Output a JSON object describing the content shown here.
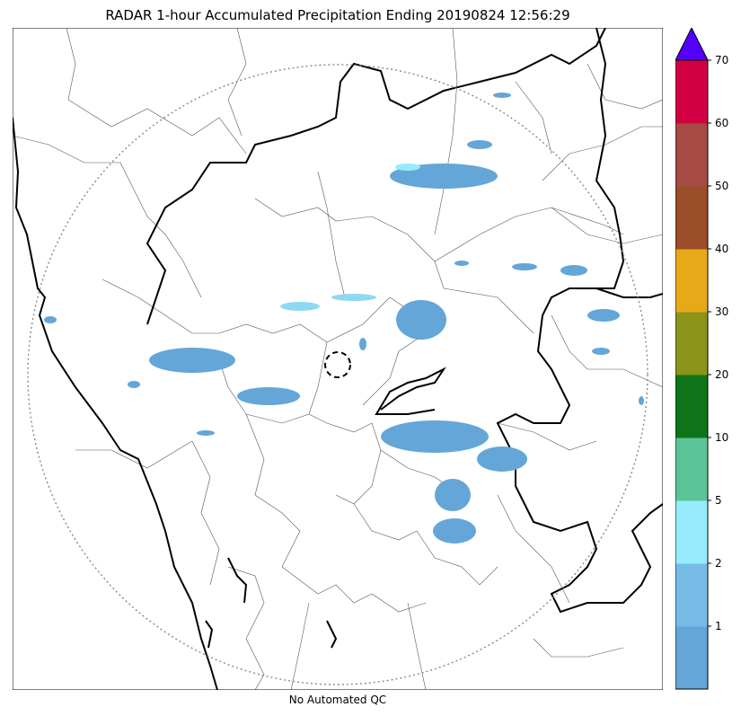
{
  "title": "RADAR 1-hour Accumulated Precipitation Ending 20190824 12:56:29",
  "qc_note": "No Automated QC",
  "colorbar": {
    "ticks": [
      "1",
      "2",
      "5",
      "10",
      "20",
      "30",
      "40",
      "50",
      "60",
      "70"
    ],
    "bands": [
      {
        "color": "#64a6d8"
      },
      {
        "color": "#76bce6"
      },
      {
        "color": "#96ecfc"
      },
      {
        "color": "#5bc398"
      },
      {
        "color": "#0e7417"
      },
      {
        "color": "#8a9519"
      },
      {
        "color": "#e8a918"
      },
      {
        "color": "#9a4d28"
      },
      {
        "color": "#a54a44"
      },
      {
        "color": "#d30043"
      }
    ],
    "extend_color": "#5500ff"
  },
  "map": {
    "boundary_color": "#000000",
    "district_color": "#555555",
    "range_ring_color": "#888888",
    "echo_colors": {
      "light": "#64a6d8",
      "medium": "#8fd8f2",
      "heavy": "#a8f4ff"
    }
  }
}
